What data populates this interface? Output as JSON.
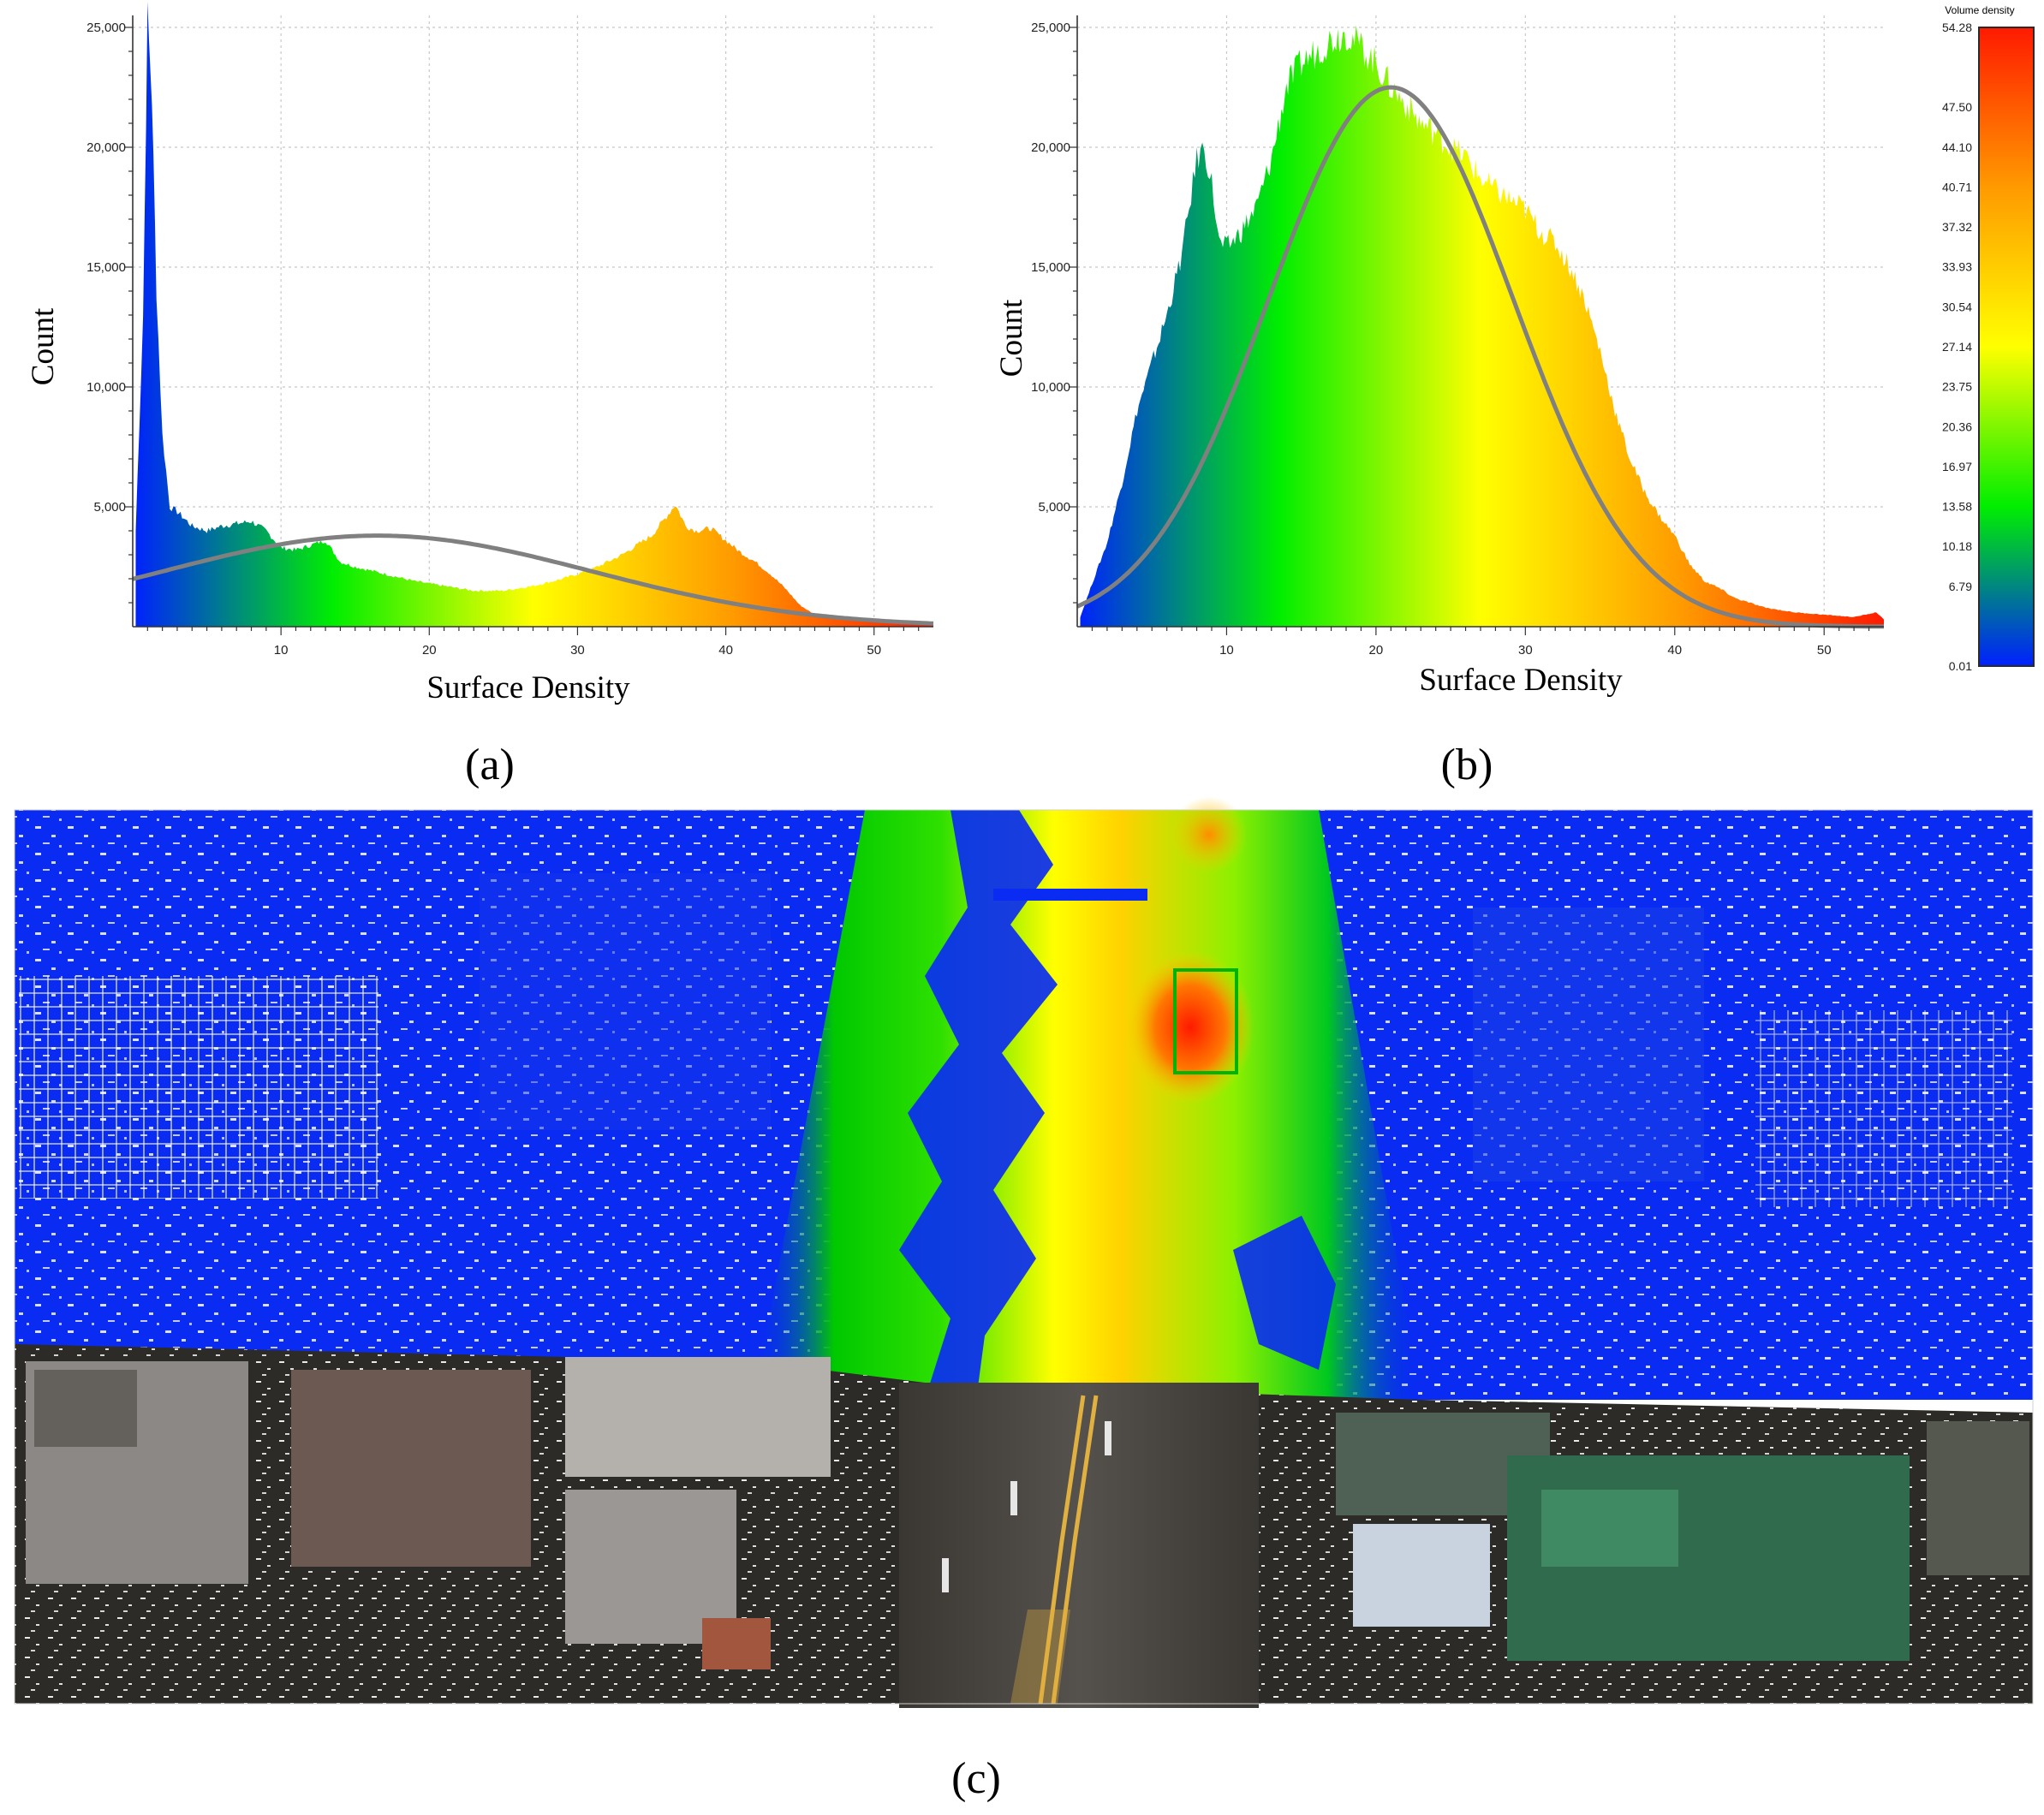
{
  "panel_labels": {
    "a": "(a)",
    "b": "(b)",
    "c": "(c)"
  },
  "colorbar": {
    "title": "Volume density",
    "ticks": [
      "54.28",
      "47.50",
      "44.10",
      "40.71",
      "37.32",
      "33.93",
      "30.54",
      "27.14",
      "23.75",
      "20.36",
      "16.97",
      "13.58",
      "10.18",
      "6.79",
      "0.01"
    ],
    "colors": [
      "#ff1a00",
      "#ff9a00",
      "#ffff00",
      "#00ee00",
      "#0020ff"
    ]
  },
  "chart_data": [
    {
      "type": "area",
      "panel": "a",
      "xlabel": "Surface Density",
      "ylabel": "Count",
      "xlim": [
        0,
        54
      ],
      "ylim": [
        0,
        25500
      ],
      "x_ticks": [
        "10",
        "20",
        "30",
        "40",
        "50"
      ],
      "y_ticks": [
        "5,000",
        "10,000",
        "15,000",
        "20,000",
        "25,000"
      ],
      "grid": true,
      "series": [
        {
          "kind": "histogram",
          "x": [
            0.2,
            0.7,
            1.0,
            1.3,
            1.6,
            2.0,
            2.5,
            3.0,
            4.0,
            5.0,
            6.0,
            7.0,
            8.0,
            9.0,
            10.0,
            11.0,
            12.0,
            13.0,
            14.0,
            15.0,
            17.0,
            19.0,
            21.0,
            23.0,
            25.0,
            27.0,
            29.0,
            31.0,
            33.0,
            35.0,
            36.0,
            36.6,
            37.3,
            38.0,
            39.0,
            40.0,
            41.0,
            42.0,
            43.0,
            44.0,
            45.0,
            46.0,
            48.0,
            50.0,
            52.0,
            54.0
          ],
          "values": [
            4000,
            13000,
            25500,
            22000,
            14000,
            8000,
            5000,
            4800,
            4200,
            4000,
            4200,
            4300,
            4400,
            4000,
            3300,
            3200,
            3400,
            3600,
            2700,
            2500,
            2200,
            1900,
            1700,
            1500,
            1500,
            1700,
            2000,
            2400,
            3000,
            3800,
            4600,
            5100,
            4200,
            4000,
            4100,
            3600,
            3100,
            2700,
            2200,
            1600,
            900,
            500,
            350,
            250,
            150,
            100
          ]
        },
        {
          "kind": "normal-fit",
          "mean": 16.5,
          "sd": 14.5,
          "peak": 3800
        }
      ]
    },
    {
      "type": "area",
      "panel": "b",
      "xlabel": "Surface Density",
      "ylabel": "Count",
      "xlim": [
        0,
        54
      ],
      "ylim": [
        0,
        25500
      ],
      "x_ticks": [
        "10",
        "20",
        "30",
        "40",
        "50"
      ],
      "y_ticks": [
        "5,000",
        "10,000",
        "15,000",
        "20,000",
        "25,000"
      ],
      "grid": true,
      "series": [
        {
          "kind": "histogram",
          "x": [
            0.2,
            1.0,
            2.0,
            3.0,
            4.0,
            5.0,
            6.0,
            7.0,
            7.5,
            8.0,
            8.5,
            9.0,
            9.5,
            10.0,
            11.0,
            12.0,
            13.0,
            14.0,
            15.0,
            16.0,
            17.0,
            18.0,
            19.0,
            20.0,
            21.0,
            22.0,
            23.0,
            24.0,
            25.0,
            26.0,
            27.0,
            28.0,
            29.0,
            30.0,
            31.0,
            32.0,
            33.0,
            34.0,
            35.0,
            36.0,
            37.0,
            38.0,
            39.0,
            40.0,
            41.0,
            42.0,
            43.0,
            44.0,
            46.0,
            48.0,
            50.0,
            52.0,
            53.5,
            54.0
          ],
          "values": [
            400,
            1800,
            3500,
            6000,
            9000,
            11000,
            13000,
            15500,
            17500,
            19500,
            20000,
            18500,
            16000,
            15800,
            16500,
            17500,
            19500,
            22500,
            23500,
            24000,
            24500,
            24800,
            24200,
            23500,
            22500,
            21800,
            21000,
            20600,
            20000,
            19600,
            18700,
            18200,
            17800,
            17400,
            16500,
            16000,
            15000,
            13600,
            11500,
            9000,
            7000,
            5600,
            4600,
            3800,
            2600,
            1900,
            1600,
            1200,
            800,
            600,
            500,
            400,
            600,
            300
          ]
        },
        {
          "kind": "normal-fit",
          "mean": 21,
          "sd": 8.2,
          "peak": 22500
        }
      ]
    }
  ]
}
